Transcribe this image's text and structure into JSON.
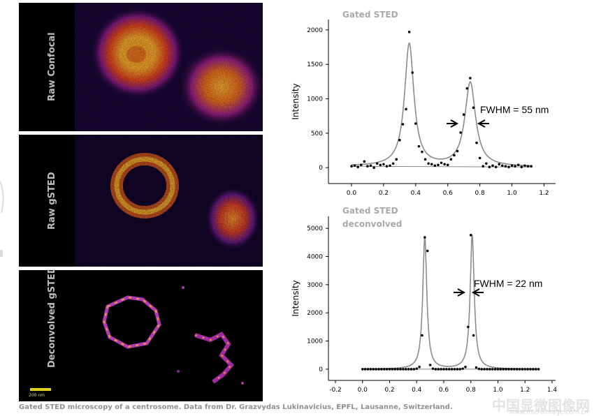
{
  "panels": [
    {
      "label": "Raw Confocal"
    },
    {
      "label": "Raw gSTED"
    },
    {
      "label": "Deconvolved gSTED"
    }
  ],
  "scalebar_label": "200 nm",
  "caption": "Gated STED microscopy of a centrosome. Data from Dr. Grazvydas Lukinavicius, EPFL, Lausanne, Switzerland.",
  "watermark": "中国显微图像网",
  "watermark_sub": "www.microimage.com.cn",
  "colors": {
    "curve": "#8a8a8a",
    "points": "#000000",
    "title": "#a8a8a8",
    "scalebar": "#e0d020"
  },
  "chart_data": [
    {
      "type": "line",
      "title": "Gated STED",
      "ylabel": "Intensity",
      "xlabel": "",
      "xlim": [
        -0.1,
        1.25
      ],
      "ylim": [
        -150,
        2100
      ],
      "xticks": [
        "0.0",
        "0.2",
        "0.4",
        "0.6",
        "0.8",
        "1.0",
        "1.2"
      ],
      "yticks": [
        "0",
        "500",
        "1000",
        "1500",
        "2000"
      ],
      "annotation": "FWHM = 55 nm",
      "series": [
        {
          "kind": "points",
          "x": [
            0.0,
            0.02,
            0.04,
            0.06,
            0.08,
            0.1,
            0.12,
            0.14,
            0.16,
            0.18,
            0.2,
            0.22,
            0.24,
            0.26,
            0.28,
            0.3,
            0.32,
            0.34,
            0.36,
            0.38,
            0.4,
            0.42,
            0.44,
            0.46,
            0.48,
            0.5,
            0.52,
            0.54,
            0.56,
            0.58,
            0.6,
            0.62,
            0.64,
            0.66,
            0.68,
            0.7,
            0.72,
            0.74,
            0.76,
            0.78,
            0.8,
            0.82,
            0.84,
            0.86,
            0.88,
            0.9,
            0.92,
            0.94,
            0.96,
            0.98,
            1.0,
            1.02,
            1.04,
            1.06,
            1.08,
            1.1,
            1.12
          ],
          "y": [
            20,
            30,
            10,
            40,
            90,
            20,
            30,
            0,
            60,
            40,
            50,
            20,
            30,
            60,
            120,
            400,
            630,
            850,
            1970,
            1380,
            640,
            310,
            230,
            120,
            60,
            50,
            30,
            40,
            70,
            50,
            40,
            120,
            180,
            240,
            510,
            770,
            1150,
            1300,
            870,
            360,
            140,
            20,
            60,
            10,
            30,
            10,
            50,
            30,
            20,
            10,
            30,
            20,
            40,
            10,
            30,
            20,
            20
          ]
        },
        {
          "kind": "fit",
          "peaks": [
            [
              0.36,
              1780,
              0.035
            ],
            [
              0.74,
              1220,
              0.04
            ]
          ],
          "baseline": [
            0.0,
            20,
            1.13,
            10
          ]
        }
      ]
    },
    {
      "type": "line",
      "title": "Gated STED deconvolved",
      "ylabel": "Intensity",
      "xlabel": "",
      "xlim": [
        -0.2,
        1.4
      ],
      "ylim": [
        -200,
        5300
      ],
      "xticks": [
        "-0.2",
        "0.0",
        "0.2",
        "0.4",
        "0.6",
        "0.8",
        "1.0",
        "1.2",
        "1.4"
      ],
      "yticks": [
        "0",
        "1000",
        "2000",
        "3000",
        "4000",
        "5000"
      ],
      "annotation": "FWHM = 22 nm",
      "series": [
        {
          "kind": "points",
          "x": [
            0.0,
            0.02,
            0.04,
            0.06,
            0.08,
            0.1,
            0.12,
            0.14,
            0.16,
            0.18,
            0.2,
            0.22,
            0.24,
            0.26,
            0.28,
            0.3,
            0.32,
            0.34,
            0.36,
            0.38,
            0.4,
            0.42,
            0.44,
            0.46,
            0.48,
            0.5,
            0.52,
            0.54,
            0.56,
            0.58,
            0.6,
            0.62,
            0.64,
            0.66,
            0.68,
            0.7,
            0.72,
            0.74,
            0.76,
            0.78,
            0.8,
            0.82,
            0.84,
            0.86,
            0.88,
            0.9,
            0.92,
            0.94,
            0.96,
            0.98,
            1.0,
            1.02,
            1.04,
            1.06,
            1.08,
            1.1,
            1.12,
            1.14,
            1.16,
            1.18,
            1.2,
            1.22,
            1.24,
            1.26,
            1.28,
            1.3
          ],
          "y": [
            0,
            0,
            0,
            0,
            0,
            0,
            0,
            0,
            0,
            0,
            0,
            0,
            0,
            0,
            0,
            0,
            0,
            0,
            0,
            0,
            20,
            80,
            1200,
            4680,
            4200,
            150,
            20,
            0,
            0,
            0,
            0,
            0,
            0,
            0,
            0,
            0,
            0,
            20,
            80,
            1500,
            4760,
            1200,
            60,
            10,
            0,
            0,
            0,
            0,
            0,
            0,
            0,
            0,
            0,
            0,
            0,
            0,
            0,
            0,
            0,
            0,
            0,
            0,
            0,
            0,
            0,
            0
          ]
        },
        {
          "kind": "fit",
          "peaks": [
            [
              0.46,
              4680,
              0.018
            ],
            [
              0.81,
              4760,
              0.018
            ]
          ],
          "baseline": [
            0.0,
            0,
            1.3,
            0
          ]
        }
      ]
    }
  ]
}
